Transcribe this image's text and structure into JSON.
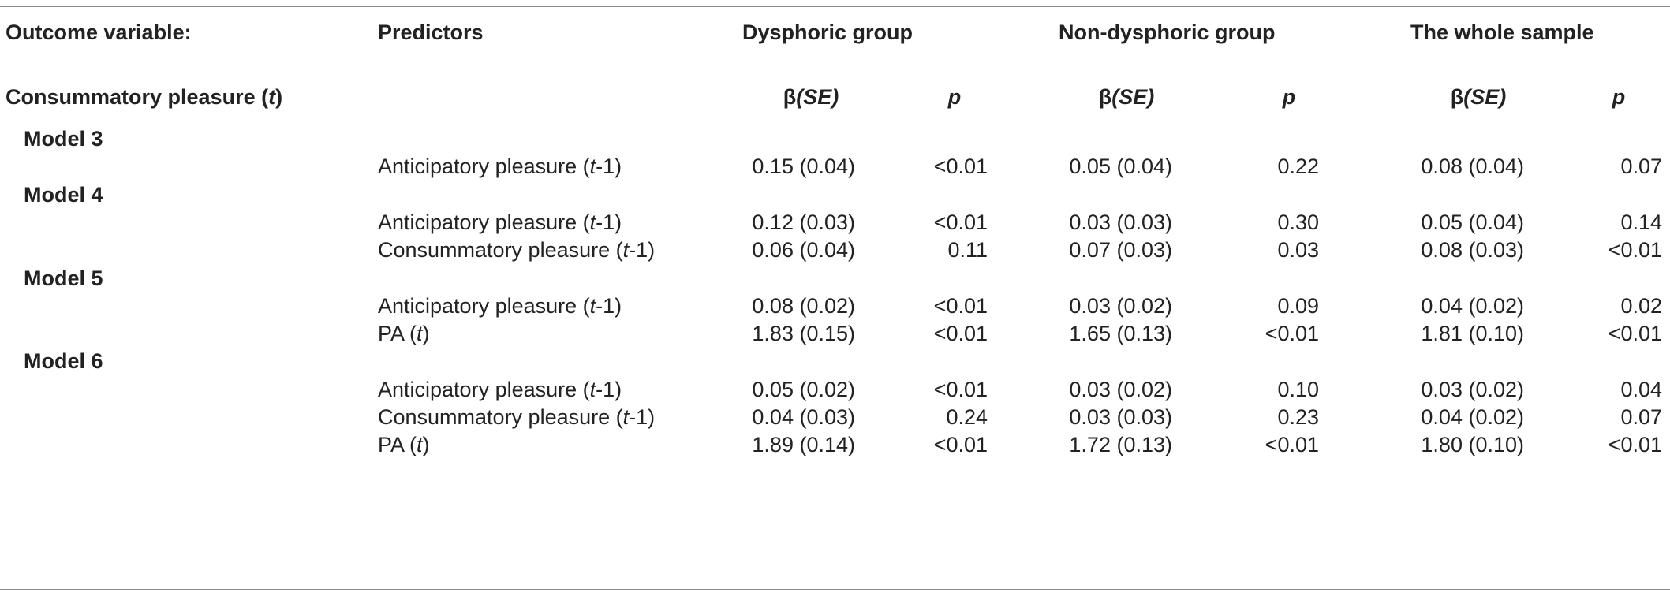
{
  "header": {
    "outcome_label": "Outcome variable:",
    "predictors_label": "Predictors",
    "groups": [
      "Dysphoric group",
      "Non-dysphoric group",
      "The whole sample"
    ],
    "outcome_name": "Consummatory pleasure",
    "outcome_time": "t",
    "beta_symbol": "β",
    "beta_se": "(SE)",
    "p_label": "p"
  },
  "models": [
    {
      "label": "Model 3",
      "rows": [
        {
          "predictor": "Anticipatory pleasure",
          "time": "t",
          "lag": "-1",
          "suffix": ")",
          "values": [
            "0.15 (0.04)",
            "<0.01",
            "0.05 (0.04)",
            "0.22",
            "0.08 (0.04)",
            "0.07"
          ]
        }
      ]
    },
    {
      "label": "Model 4",
      "rows": [
        {
          "predictor": "Anticipatory pleasure",
          "time": "t",
          "lag": "-1",
          "suffix": ")",
          "values": [
            "0.12 (0.03)",
            "<0.01",
            "0.03 (0.03)",
            "0.30",
            "0.05 (0.04)",
            "0.14"
          ]
        },
        {
          "predictor": "Consummatory pleasure",
          "time": "t",
          "lag": "-1",
          "suffix": ")",
          "values": [
            "0.06 (0.04)",
            "0.11",
            "0.07 (0.03)",
            "0.03",
            "0.08 (0.03)",
            "<0.01"
          ]
        }
      ]
    },
    {
      "label": "Model 5",
      "rows": [
        {
          "predictor": "Anticipatory pleasure",
          "time": "t",
          "lag": "-1",
          "suffix": ")",
          "values": [
            "0.08 (0.02)",
            "<0.01",
            "0.03 (0.02)",
            "0.09",
            "0.04 (0.02)",
            "0.02"
          ]
        },
        {
          "predictor": "PA",
          "time": "t",
          "lag": "",
          "suffix": ")",
          "values": [
            "1.83 (0.15)",
            "<0.01",
            "1.65 (0.13)",
            "<0.01",
            "1.81 (0.10)",
            "<0.01"
          ]
        }
      ]
    },
    {
      "label": "Model 6",
      "rows": [
        {
          "predictor": "Anticipatory pleasure",
          "time": "t",
          "lag": "-1",
          "suffix": ")",
          "values": [
            "0.05 (0.02)",
            "<0.01",
            "0.03 (0.02)",
            "0.10",
            "0.03 (0.02)",
            "0.04"
          ]
        },
        {
          "predictor": "Consummatory pleasure",
          "time": "t",
          "lag": "-1",
          "suffix": ")",
          "values": [
            "0.04 (0.03)",
            "0.24",
            "0.03 (0.03)",
            "0.23",
            "0.04 (0.02)",
            "0.07"
          ]
        },
        {
          "predictor": "PA",
          "time": "t",
          "lag": "",
          "suffix": ")",
          "values": [
            "1.89 (0.14)",
            "<0.01",
            "1.72 (0.13)",
            "<0.01",
            "1.80 (0.10)",
            "<0.01"
          ]
        }
      ]
    }
  ]
}
